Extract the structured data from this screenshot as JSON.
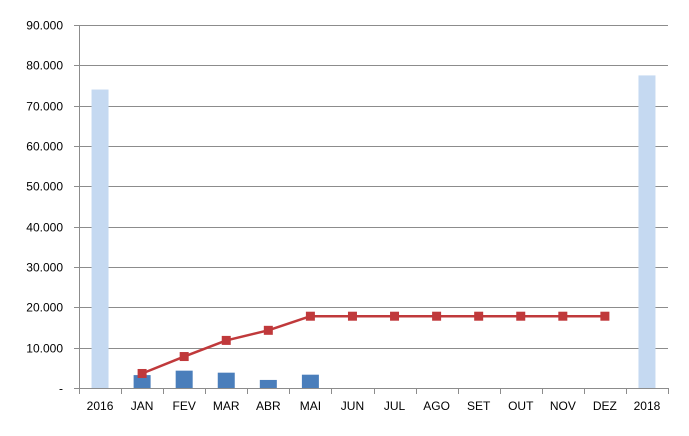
{
  "chart_data": {
    "type": "bar",
    "categories": [
      "2016",
      "JAN",
      "FEV",
      "MAR",
      "ABR",
      "MAI",
      "JUN",
      "JUL",
      "AGO",
      "SET",
      "OUT",
      "NOV",
      "DEZ",
      "2018"
    ],
    "ylim": [
      0,
      90000
    ],
    "y_ticks": [
      {
        "value": 0,
        "label": "-"
      },
      {
        "value": 10000,
        "label": "10.000"
      },
      {
        "value": 20000,
        "label": "20.000"
      },
      {
        "value": 30000,
        "label": "30.000"
      },
      {
        "value": 40000,
        "label": "40.000"
      },
      {
        "value": 50000,
        "label": "50.000"
      },
      {
        "value": 60000,
        "label": "60.000"
      },
      {
        "value": 70000,
        "label": "70.000"
      },
      {
        "value": 80000,
        "label": "80.000"
      },
      {
        "value": 90000,
        "label": "90.000"
      }
    ],
    "grid": true,
    "legend": "none",
    "series": [
      {
        "type": "bar",
        "color": "#c5d9f1",
        "values": [
          74000,
          null,
          null,
          null,
          null,
          null,
          null,
          null,
          null,
          null,
          null,
          null,
          null,
          77500
        ]
      },
      {
        "type": "bar",
        "color": "#4a7ebb",
        "values": [
          null,
          3200,
          4300,
          3800,
          2000,
          3300,
          null,
          null,
          null,
          null,
          null,
          null,
          null,
          null
        ]
      },
      {
        "type": "line",
        "color": "#c0393b",
        "marker": "square",
        "values": [
          null,
          3600,
          7800,
          11800,
          14300,
          17800,
          17800,
          17800,
          17800,
          17800,
          17800,
          17800,
          17800,
          null
        ]
      }
    ]
  }
}
